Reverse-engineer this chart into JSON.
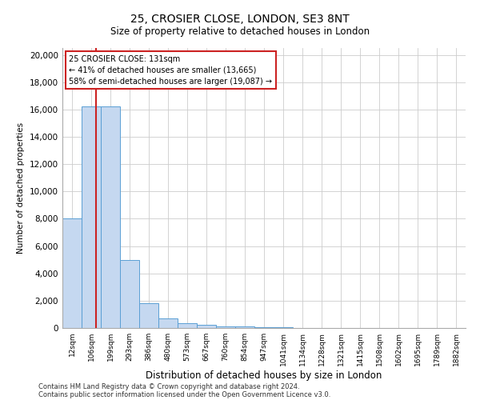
{
  "title1": "25, CROSIER CLOSE, LONDON, SE3 8NT",
  "title2": "Size of property relative to detached houses in London",
  "xlabel": "Distribution of detached houses by size in London",
  "ylabel": "Number of detached properties",
  "categories": [
    "12sqm",
    "106sqm",
    "199sqm",
    "293sqm",
    "386sqm",
    "480sqm",
    "573sqm",
    "667sqm",
    "760sqm",
    "854sqm",
    "947sqm",
    "1041sqm",
    "1134sqm",
    "1228sqm",
    "1321sqm",
    "1415sqm",
    "1508sqm",
    "1602sqm",
    "1695sqm",
    "1789sqm",
    "1882sqm"
  ],
  "values": [
    8000,
    16200,
    16200,
    5000,
    1800,
    700,
    380,
    220,
    140,
    95,
    55,
    35,
    20,
    12,
    8,
    6,
    5,
    4,
    3,
    2,
    1
  ],
  "bar_color": "#c5d8f0",
  "bar_edge_color": "#5a9fd4",
  "line_x_index": 1.25,
  "line_color": "#cc2222",
  "annotation_title": "25 CROSIER CLOSE: 131sqm",
  "annotation_line1": "← 41% of detached houses are smaller (13,665)",
  "annotation_line2": "58% of semi-detached houses are larger (19,087) →",
  "annotation_box_color": "#cc2222",
  "grid_color": "#cccccc",
  "background_color": "#ffffff",
  "ylim": [
    0,
    20500
  ],
  "yticks": [
    0,
    2000,
    4000,
    6000,
    8000,
    10000,
    12000,
    14000,
    16000,
    18000,
    20000
  ],
  "footer1": "Contains HM Land Registry data © Crown copyright and database right 2024.",
  "footer2": "Contains public sector information licensed under the Open Government Licence v3.0."
}
